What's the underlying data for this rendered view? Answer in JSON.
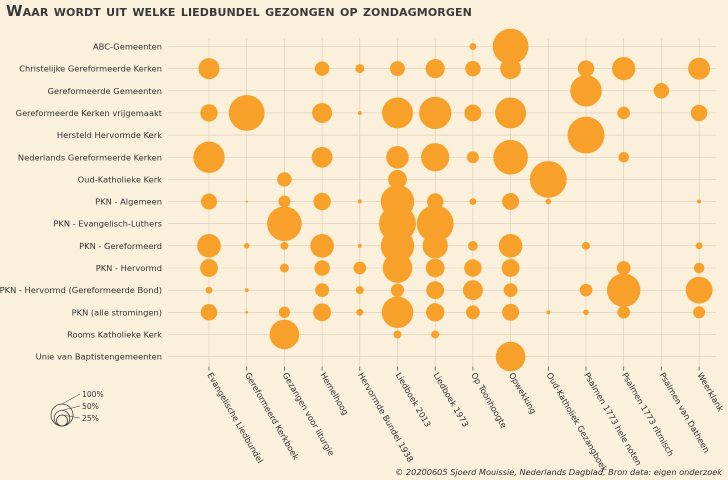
{
  "colors": {
    "background": "#fbf0dc",
    "bubble": "#f7a12b",
    "grid": "#d9cdb8",
    "text": "#333333"
  },
  "chart_data": {
    "type": "bubble-matrix",
    "title": "Waar wordt uit welke liedbundel gezongen op zondagmorgen",
    "rows": [
      "ABC-Gemeenten",
      "Christelijke Gereformeerde Kerken",
      "Gereformeerde Gemeenten",
      "Gereformeerde Kerken vrijgemaakt",
      "Hersteld Hervormde Kerk",
      "Nederlands Gereformeerde Kerken",
      "Oud-Katholieke Kerk",
      "PKN - Algemeen",
      "PKN - Evangelisch-Luthers",
      "PKN - Gereformeerd",
      "PKN - Hervormd",
      "PKN - Hervormd (Gereformeerde Bond)",
      "PKN (alle stromingen)",
      "Rooms Katholieke Kerk",
      "Unie van Baptistengemeenten"
    ],
    "columns": [
      "Evangelische Liedbundel",
      "Gereformeerd Kerkboek",
      "Gezangen voor liturgie",
      "Hemelhoog",
      "Hervormde Bundel 1938",
      "Liedboek 2013",
      "Liedboek 1973",
      "Op Toonhoogte",
      "Opwekking",
      "Oud-Katholiek Gezangboek",
      "Psalmen 1773 hele noten",
      "Psalmen 1773 ritmisch",
      "Psalmen van Datheen",
      "Weerklank"
    ],
    "values_percent": [
      [
        0,
        0,
        0,
        0,
        0,
        0,
        0,
        3,
        80,
        0,
        0,
        0,
        0,
        0
      ],
      [
        28,
        0,
        0,
        13,
        5,
        14,
        23,
        15,
        27,
        0,
        17,
        34,
        0,
        30
      ],
      [
        0,
        0,
        0,
        0,
        0,
        0,
        0,
        0,
        0,
        0,
        62,
        0,
        15,
        0
      ],
      [
        19,
        80,
        0,
        25,
        1,
        60,
        65,
        18,
        60,
        0,
        0,
        10,
        0,
        17
      ],
      [
        0,
        0,
        0,
        0,
        0,
        0,
        0,
        0,
        0,
        0,
        85,
        0,
        0,
        0
      ],
      [
        62,
        0,
        0,
        27,
        0,
        32,
        50,
        9,
        75,
        0,
        0,
        7,
        0,
        0
      ],
      [
        0,
        0,
        13,
        0,
        0,
        22,
        0,
        0,
        0,
        85,
        0,
        0,
        0,
        0
      ],
      [
        16,
        0.3,
        9,
        19,
        1,
        70,
        17,
        3,
        18,
        2,
        0,
        0,
        0,
        1
      ],
      [
        0,
        0,
        75,
        0,
        0,
        85,
        85,
        0,
        0,
        0,
        0,
        0,
        0,
        0
      ],
      [
        35,
        2,
        4,
        35,
        1,
        70,
        40,
        6,
        35,
        0,
        4,
        0,
        0,
        3
      ],
      [
        20,
        0,
        5,
        15,
        10,
        55,
        22,
        19,
        20,
        0,
        0,
        12,
        0,
        7
      ],
      [
        3,
        1,
        0,
        12,
        4,
        11,
        20,
        25,
        12,
        0,
        10,
        70,
        0,
        45
      ],
      [
        17,
        0.5,
        8,
        20,
        3,
        62,
        21,
        12,
        18,
        1,
        2,
        10,
        0,
        9
      ],
      [
        0,
        0,
        55,
        0,
        0,
        4,
        4,
        0,
        0,
        0,
        0,
        0,
        0,
        0
      ],
      [
        0,
        0,
        0,
        0,
        0,
        0,
        0,
        0,
        55,
        0,
        0,
        0,
        0,
        0
      ]
    ],
    "legend": {
      "labels": [
        "100%",
        "50%",
        "25%"
      ],
      "values": [
        100,
        50,
        25
      ],
      "placement": "bottom-left"
    },
    "grid": true
  },
  "credit": "© 20200605 Sjoerd Mouissie, Nederlands Dagblad. Bron data: eigen onderzoek"
}
